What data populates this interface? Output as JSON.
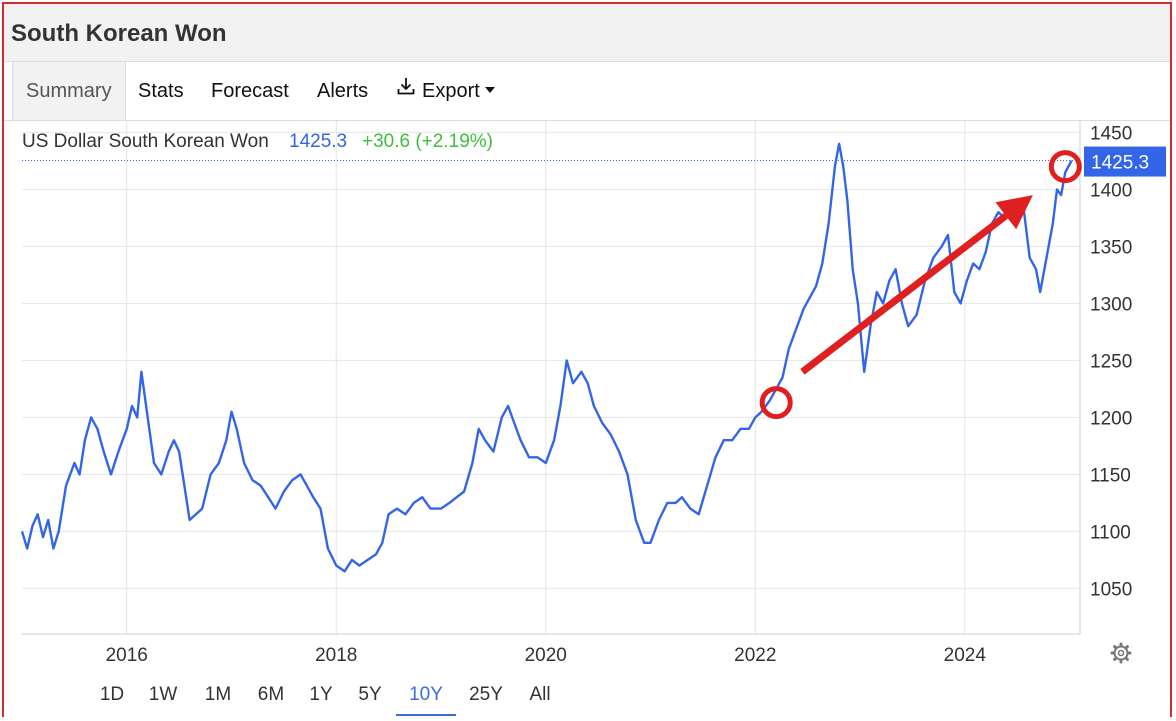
{
  "page": {
    "title": "South Korean Won"
  },
  "tabs": [
    {
      "label": "Summary",
      "active": true
    },
    {
      "label": "Stats"
    },
    {
      "label": "Forecast"
    },
    {
      "label": "Alerts"
    },
    {
      "label": "Export",
      "icon": "download-icon"
    }
  ],
  "ranges": [
    {
      "label": "1D"
    },
    {
      "label": "1W"
    },
    {
      "label": "1M"
    },
    {
      "label": "6M"
    },
    {
      "label": "1Y"
    },
    {
      "label": "5Y"
    },
    {
      "label": "10Y",
      "active": true
    },
    {
      "label": "25Y"
    },
    {
      "label": "All"
    }
  ],
  "settings_icon": "gear-icon",
  "colors": {
    "line": "#3366e6",
    "change": "#3cbf3c",
    "arrow": "#e02020",
    "frame": "#d62b2b"
  },
  "chart_data": {
    "type": "line",
    "series": [
      {
        "name": "US Dollar South Korean Won",
        "last": "1425.3",
        "change": "+30.6 (+2.19%)",
        "points": [
          [
            "2015.00",
            1100
          ],
          [
            "2015.05",
            1085
          ],
          [
            "2015.10",
            1105
          ],
          [
            "2015.15",
            1115
          ],
          [
            "2015.20",
            1095
          ],
          [
            "2015.25",
            1110
          ],
          [
            "2015.30",
            1085
          ],
          [
            "2015.35",
            1100
          ],
          [
            "2015.42",
            1140
          ],
          [
            "2015.50",
            1160
          ],
          [
            "2015.55",
            1150
          ],
          [
            "2015.60",
            1180
          ],
          [
            "2015.66",
            1200
          ],
          [
            "2015.72",
            1190
          ],
          [
            "2015.78",
            1170
          ],
          [
            "2015.85",
            1150
          ],
          [
            "2015.92",
            1170
          ],
          [
            "2016.00",
            1190
          ],
          [
            "2016.05",
            1210
          ],
          [
            "2016.10",
            1200
          ],
          [
            "2016.14",
            1240
          ],
          [
            "2016.20",
            1200
          ],
          [
            "2016.26",
            1160
          ],
          [
            "2016.33",
            1150
          ],
          [
            "2016.40",
            1170
          ],
          [
            "2016.45",
            1180
          ],
          [
            "2016.50",
            1170
          ],
          [
            "2016.55",
            1140
          ],
          [
            "2016.60",
            1110
          ],
          [
            "2016.66",
            1115
          ],
          [
            "2016.72",
            1120
          ],
          [
            "2016.80",
            1150
          ],
          [
            "2016.88",
            1160
          ],
          [
            "2016.95",
            1180
          ],
          [
            "2017.00",
            1205
          ],
          [
            "2017.05",
            1190
          ],
          [
            "2017.12",
            1160
          ],
          [
            "2017.20",
            1145
          ],
          [
            "2017.28",
            1140
          ],
          [
            "2017.35",
            1130
          ],
          [
            "2017.42",
            1120
          ],
          [
            "2017.50",
            1135
          ],
          [
            "2017.58",
            1145
          ],
          [
            "2017.66",
            1150
          ],
          [
            "2017.72",
            1140
          ],
          [
            "2017.78",
            1130
          ],
          [
            "2017.85",
            1120
          ],
          [
            "2017.92",
            1085
          ],
          [
            "2018.00",
            1070
          ],
          [
            "2018.08",
            1065
          ],
          [
            "2018.15",
            1075
          ],
          [
            "2018.22",
            1070
          ],
          [
            "2018.30",
            1075
          ],
          [
            "2018.38",
            1080
          ],
          [
            "2018.44",
            1090
          ],
          [
            "2018.50",
            1115
          ],
          [
            "2018.58",
            1120
          ],
          [
            "2018.66",
            1115
          ],
          [
            "2018.74",
            1125
          ],
          [
            "2018.82",
            1130
          ],
          [
            "2018.90",
            1120
          ],
          [
            "2019.00",
            1120
          ],
          [
            "2019.08",
            1125
          ],
          [
            "2019.15",
            1130
          ],
          [
            "2019.22",
            1135
          ],
          [
            "2019.30",
            1160
          ],
          [
            "2019.36",
            1190
          ],
          [
            "2019.42",
            1180
          ],
          [
            "2019.50",
            1170
          ],
          [
            "2019.58",
            1200
          ],
          [
            "2019.64",
            1210
          ],
          [
            "2019.70",
            1195
          ],
          [
            "2019.76",
            1180
          ],
          [
            "2019.84",
            1165
          ],
          [
            "2019.92",
            1165
          ],
          [
            "2020.00",
            1160
          ],
          [
            "2020.08",
            1180
          ],
          [
            "2020.14",
            1210
          ],
          [
            "2020.20",
            1250
          ],
          [
            "2020.26",
            1230
          ],
          [
            "2020.34",
            1240
          ],
          [
            "2020.40",
            1230
          ],
          [
            "2020.46",
            1210
          ],
          [
            "2020.54",
            1195
          ],
          [
            "2020.62",
            1185
          ],
          [
            "2020.70",
            1170
          ],
          [
            "2020.78",
            1150
          ],
          [
            "2020.86",
            1110
          ],
          [
            "2020.94",
            1090
          ],
          [
            "2021.00",
            1090
          ],
          [
            "2021.08",
            1110
          ],
          [
            "2021.16",
            1125
          ],
          [
            "2021.24",
            1125
          ],
          [
            "2021.30",
            1130
          ],
          [
            "2021.38",
            1120
          ],
          [
            "2021.46",
            1115
          ],
          [
            "2021.54",
            1140
          ],
          [
            "2021.62",
            1165
          ],
          [
            "2021.70",
            1180
          ],
          [
            "2021.78",
            1180
          ],
          [
            "2021.86",
            1190
          ],
          [
            "2021.94",
            1190
          ],
          [
            "2022.00",
            1200
          ],
          [
            "2022.06",
            1205
          ],
          [
            "2022.14",
            1215
          ],
          [
            "2022.20",
            1225
          ],
          [
            "2022.26",
            1235
          ],
          [
            "2022.32",
            1260
          ],
          [
            "2022.40",
            1280
          ],
          [
            "2022.46",
            1295
          ],
          [
            "2022.52",
            1305
          ],
          [
            "2022.58",
            1315
          ],
          [
            "2022.64",
            1335
          ],
          [
            "2022.70",
            1370
          ],
          [
            "2022.76",
            1420
          ],
          [
            "2022.80",
            1440
          ],
          [
            "2022.84",
            1420
          ],
          [
            "2022.88",
            1390
          ],
          [
            "2022.93",
            1330
          ],
          [
            "2022.98",
            1300
          ],
          [
            "2023.04",
            1240
          ],
          [
            "2023.10",
            1280
          ],
          [
            "2023.16",
            1310
          ],
          [
            "2023.22",
            1300
          ],
          [
            "2023.28",
            1320
          ],
          [
            "2023.34",
            1330
          ],
          [
            "2023.40",
            1300
          ],
          [
            "2023.46",
            1280
          ],
          [
            "2023.54",
            1290
          ],
          [
            "2023.62",
            1320
          ],
          [
            "2023.70",
            1340
          ],
          [
            "2023.78",
            1350
          ],
          [
            "2023.84",
            1360
          ],
          [
            "2023.90",
            1310
          ],
          [
            "2023.96",
            1300
          ],
          [
            "2024.02",
            1320
          ],
          [
            "2024.08",
            1335
          ],
          [
            "2024.14",
            1330
          ],
          [
            "2024.20",
            1345
          ],
          [
            "2024.26",
            1370
          ],
          [
            "2024.32",
            1380
          ],
          [
            "2024.38",
            1375
          ],
          [
            "2024.44",
            1385
          ],
          [
            "2024.50",
            1380
          ],
          [
            "2024.56",
            1385
          ],
          [
            "2024.62",
            1340
          ],
          [
            "2024.68",
            1330
          ],
          [
            "2024.72",
            1310
          ],
          [
            "2024.78",
            1340
          ],
          [
            "2024.84",
            1370
          ],
          [
            "2024.88",
            1400
          ],
          [
            "2024.92",
            1395
          ],
          [
            "2024.96",
            1415
          ],
          [
            "2025.02",
            1425.3
          ]
        ]
      }
    ],
    "xticks": [
      "2016",
      "2018",
      "2020",
      "2022",
      "2024"
    ],
    "yticks": [
      1050,
      1100,
      1150,
      1200,
      1250,
      1300,
      1350,
      1400,
      1450
    ],
    "xlim": [
      "2015.00",
      "2025.10"
    ],
    "ylim": [
      1010,
      1460
    ],
    "last_value_label": "1425.3",
    "annotations": [
      {
        "type": "circle",
        "at": [
          "2022.20",
          1213
        ]
      },
      {
        "type": "circle",
        "at": [
          "2024.96",
          1420
        ]
      },
      {
        "type": "arrow",
        "from": [
          "2022.45",
          1240
        ],
        "to": [
          "2024.65",
          1395
        ]
      }
    ],
    "grid": true,
    "legend": "top-left"
  }
}
